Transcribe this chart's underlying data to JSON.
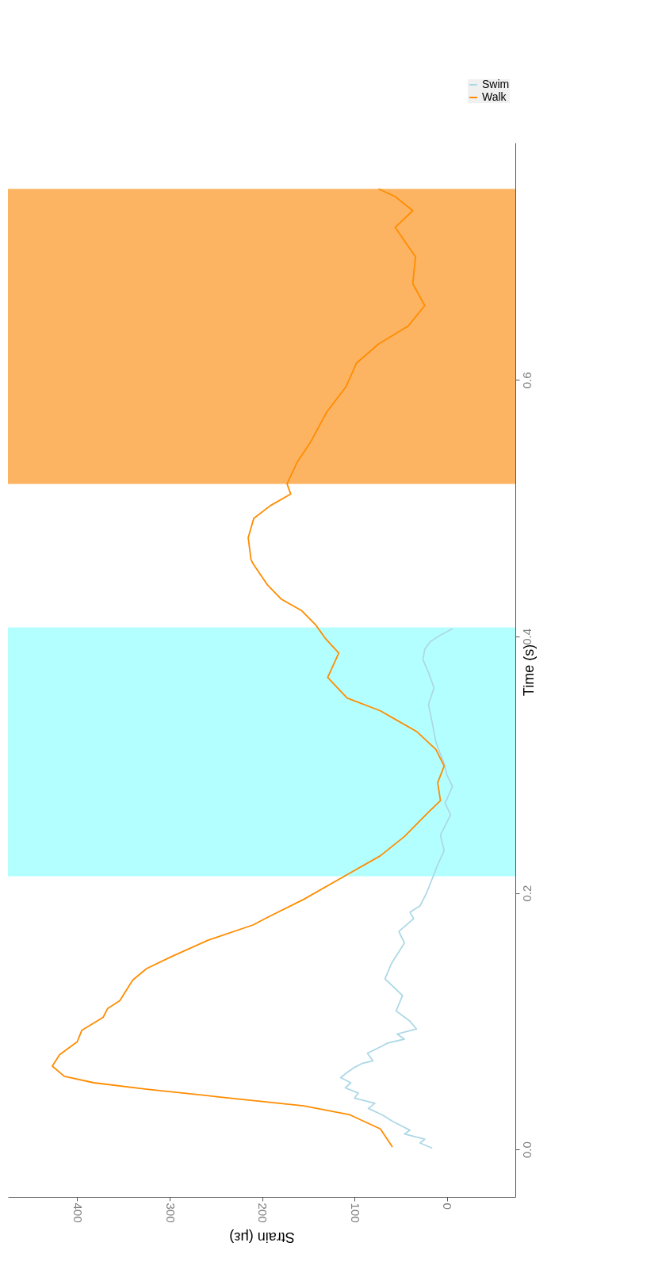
{
  "chart_data": {
    "type": "line",
    "xlabel": "Strain (με)",
    "ylabel": "Time (s)",
    "xlim": [
      475,
      -74
    ],
    "xticks": [
      0,
      100,
      200,
      300,
      400
    ],
    "ylim": [
      -0.037,
      0.785
    ],
    "yticks": [
      {
        "value": 0,
        "label": "0.0"
      },
      0.2,
      0.4,
      0.6
    ],
    "grid": false,
    "legend": "top right",
    "marker": "none",
    "line_style": "solid",
    "bands": [
      {
        "axis": "y",
        "from": 0.213,
        "to": 0.407,
        "color": "#b3ffff"
      },
      {
        "axis": "y",
        "from": 0.519,
        "to": 0.749,
        "color": "#fdb462"
      }
    ],
    "series": [
      {
        "name": "Swim",
        "color": "#add8e6",
        "x": [
          16,
          29,
          24,
          46,
          40,
          59,
          70,
          85,
          78,
          100,
          96,
          110,
          104,
          115,
          108,
          100,
          92,
          80,
          86,
          72,
          64,
          46,
          54,
          33,
          40,
          55,
          48,
          67,
          60,
          46,
          52,
          36,
          40,
          29,
          22,
          16,
          10,
          3,
          7,
          -4,
          2,
          -6,
          0,
          3,
          8,
          12,
          16,
          20,
          14,
          20,
          26,
          24,
          18,
          7,
          -6
        ],
        "values": [
          0.001,
          0.005,
          0.008,
          0.012,
          0.015,
          0.022,
          0.027,
          0.032,
          0.036,
          0.04,
          0.044,
          0.048,
          0.052,
          0.056,
          0.06,
          0.064,
          0.067,
          0.069,
          0.075,
          0.08,
          0.083,
          0.086,
          0.09,
          0.094,
          0.1,
          0.108,
          0.12,
          0.133,
          0.145,
          0.161,
          0.17,
          0.18,
          0.185,
          0.19,
          0.2,
          0.211,
          0.222,
          0.233,
          0.245,
          0.261,
          0.27,
          0.283,
          0.292,
          0.301,
          0.31,
          0.318,
          0.333,
          0.347,
          0.36,
          0.372,
          0.382,
          0.39,
          0.396,
          0.401,
          0.406
        ]
      },
      {
        "name": "Walk",
        "color": "#ff8c00",
        "x": [
          59,
          72,
          105,
          155,
          247,
          325,
          382,
          414,
          427,
          419,
          400,
          395,
          372,
          367,
          354,
          340,
          325,
          299,
          259,
          210,
          194,
          155,
          116,
          72,
          46,
          20,
          7,
          10,
          3,
          12,
          33,
          55,
          72,
          108,
          129,
          117,
          131,
          142,
          157,
          179,
          194,
          210,
          212,
          215,
          209,
          191,
          169,
          173,
          162,
          148,
          130,
          109,
          98,
          74,
          42,
          24,
          37,
          34,
          56,
          37,
          56,
          74
        ],
        "values": [
          0.002,
          0.016,
          0.027,
          0.034,
          0.041,
          0.047,
          0.052,
          0.057,
          0.065,
          0.074,
          0.084,
          0.093,
          0.103,
          0.11,
          0.116,
          0.132,
          0.141,
          0.15,
          0.163,
          0.175,
          0.181,
          0.195,
          0.211,
          0.229,
          0.244,
          0.263,
          0.272,
          0.286,
          0.299,
          0.312,
          0.326,
          0.335,
          0.342,
          0.352,
          0.368,
          0.387,
          0.398,
          0.409,
          0.42,
          0.429,
          0.44,
          0.457,
          0.46,
          0.477,
          0.492,
          0.502,
          0.511,
          0.519,
          0.536,
          0.551,
          0.575,
          0.595,
          0.613,
          0.628,
          0.642,
          0.658,
          0.675,
          0.696,
          0.719,
          0.732,
          0.743,
          0.749
        ]
      }
    ]
  }
}
